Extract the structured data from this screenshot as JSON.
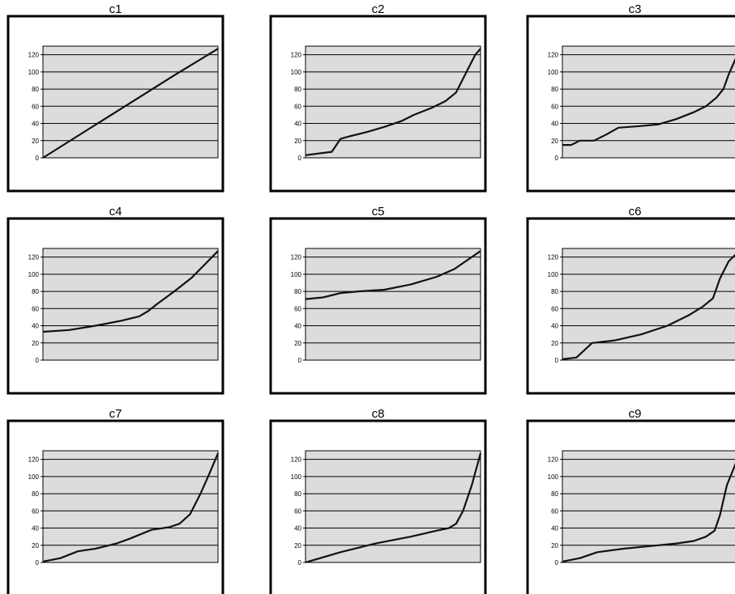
{
  "chart_data": [
    {
      "type": "line",
      "title": "c1",
      "ylim": [
        0,
        130
      ],
      "yticks": [
        0,
        20,
        40,
        60,
        80,
        100,
        120
      ],
      "xlim": [
        0,
        1
      ],
      "series": [
        {
          "values": [
            [
              0,
              0
            ],
            [
              0.25,
              32
            ],
            [
              0.5,
              64
            ],
            [
              0.75,
              96
            ],
            [
              1,
              127
            ]
          ]
        }
      ]
    },
    {
      "type": "line",
      "title": "c2",
      "ylim": [
        0,
        130
      ],
      "yticks": [
        0,
        20,
        40,
        60,
        80,
        100,
        120
      ],
      "xlim": [
        0,
        1
      ],
      "series": [
        {
          "values": [
            [
              0,
              3
            ],
            [
              0.15,
              7
            ],
            [
              0.2,
              22
            ],
            [
              0.25,
              25
            ],
            [
              0.35,
              30
            ],
            [
              0.45,
              36
            ],
            [
              0.55,
              43
            ],
            [
              0.62,
              50
            ],
            [
              0.72,
              58
            ],
            [
              0.8,
              66
            ],
            [
              0.86,
              76
            ],
            [
              0.92,
              100
            ],
            [
              0.97,
              120
            ],
            [
              1,
              127
            ]
          ]
        }
      ]
    },
    {
      "type": "line",
      "title": "c3",
      "ylim": [
        0,
        130
      ],
      "yticks": [
        0,
        20,
        40,
        60,
        80,
        100,
        120
      ],
      "xlim": [
        0,
        1
      ],
      "series": [
        {
          "values": [
            [
              0,
              15
            ],
            [
              0.05,
              15
            ],
            [
              0.1,
              20
            ],
            [
              0.18,
              20
            ],
            [
              0.25,
              27
            ],
            [
              0.32,
              35
            ],
            [
              0.45,
              37
            ],
            [
              0.55,
              39
            ],
            [
              0.65,
              45
            ],
            [
              0.75,
              53
            ],
            [
              0.82,
              60
            ],
            [
              0.88,
              70
            ],
            [
              0.92,
              80
            ],
            [
              0.95,
              97
            ],
            [
              1,
              120
            ]
          ]
        }
      ]
    },
    {
      "type": "line",
      "title": "c4",
      "ylim": [
        0,
        130
      ],
      "yticks": [
        0,
        20,
        40,
        60,
        80,
        100,
        120
      ],
      "xlim": [
        0,
        1
      ],
      "series": [
        {
          "values": [
            [
              0,
              33
            ],
            [
              0.15,
              35
            ],
            [
              0.3,
              40
            ],
            [
              0.45,
              46
            ],
            [
              0.55,
              51
            ],
            [
              0.6,
              57
            ],
            [
              0.65,
              65
            ],
            [
              0.75,
              80
            ],
            [
              0.85,
              96
            ],
            [
              1,
              127
            ]
          ]
        }
      ]
    },
    {
      "type": "line",
      "title": "c5",
      "ylim": [
        0,
        130
      ],
      "yticks": [
        0,
        20,
        40,
        60,
        80,
        100,
        120
      ],
      "xlim": [
        0,
        1
      ],
      "series": [
        {
          "values": [
            [
              0,
              71
            ],
            [
              0.1,
              73
            ],
            [
              0.2,
              78
            ],
            [
              0.3,
              80
            ],
            [
              0.45,
              82
            ],
            [
              0.6,
              88
            ],
            [
              0.75,
              97
            ],
            [
              0.85,
              106
            ],
            [
              1,
              127
            ]
          ]
        }
      ]
    },
    {
      "type": "line",
      "title": "c6",
      "ylim": [
        0,
        130
      ],
      "yticks": [
        0,
        20,
        40,
        60,
        80,
        100,
        120
      ],
      "xlim": [
        0,
        1
      ],
      "series": [
        {
          "values": [
            [
              0,
              1
            ],
            [
              0.08,
              3
            ],
            [
              0.17,
              20
            ],
            [
              0.3,
              23
            ],
            [
              0.45,
              30
            ],
            [
              0.6,
              40
            ],
            [
              0.72,
              52
            ],
            [
              0.8,
              62
            ],
            [
              0.86,
              72
            ],
            [
              0.9,
              95
            ],
            [
              0.95,
              115
            ],
            [
              1,
              125
            ]
          ]
        }
      ]
    },
    {
      "type": "line",
      "title": "c7",
      "ylim": [
        0,
        130
      ],
      "yticks": [
        0,
        20,
        40,
        60,
        80,
        100,
        120
      ],
      "xlim": [
        0,
        1
      ],
      "series": [
        {
          "values": [
            [
              0,
              1
            ],
            [
              0.1,
              5
            ],
            [
              0.2,
              13
            ],
            [
              0.3,
              16
            ],
            [
              0.42,
              22
            ],
            [
              0.5,
              28
            ],
            [
              0.62,
              38
            ],
            [
              0.72,
              41
            ],
            [
              0.78,
              45
            ],
            [
              0.84,
              56
            ],
            [
              0.9,
              80
            ],
            [
              0.95,
              103
            ],
            [
              1,
              127
            ]
          ]
        }
      ]
    },
    {
      "type": "line",
      "title": "c8",
      "ylim": [
        0,
        130
      ],
      "yticks": [
        0,
        20,
        40,
        60,
        80,
        100,
        120
      ],
      "xlim": [
        0,
        1
      ],
      "series": [
        {
          "values": [
            [
              0,
              0
            ],
            [
              0.2,
              12
            ],
            [
              0.4,
              22
            ],
            [
              0.6,
              30
            ],
            [
              0.75,
              37
            ],
            [
              0.82,
              40
            ],
            [
              0.86,
              45
            ],
            [
              0.9,
              60
            ],
            [
              0.95,
              90
            ],
            [
              1,
              127
            ]
          ]
        }
      ]
    },
    {
      "type": "line",
      "title": "c9",
      "ylim": [
        0,
        130
      ],
      "yticks": [
        0,
        20,
        40,
        60,
        80,
        100,
        120
      ],
      "xlim": [
        0,
        1
      ],
      "series": [
        {
          "values": [
            [
              0,
              1
            ],
            [
              0.1,
              5
            ],
            [
              0.2,
              12
            ],
            [
              0.35,
              16
            ],
            [
              0.5,
              19
            ],
            [
              0.65,
              22
            ],
            [
              0.75,
              25
            ],
            [
              0.82,
              30
            ],
            [
              0.87,
              37
            ],
            [
              0.9,
              55
            ],
            [
              0.94,
              90
            ],
            [
              1,
              120
            ]
          ]
        }
      ]
    }
  ]
}
